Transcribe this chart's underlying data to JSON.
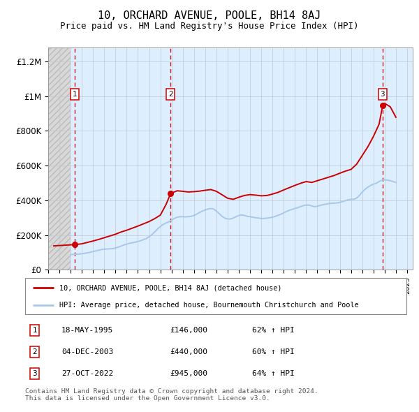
{
  "title": "10, ORCHARD AVENUE, POOLE, BH14 8AJ",
  "subtitle": "Price paid vs. HM Land Registry's House Price Index (HPI)",
  "title_fontsize": 11,
  "subtitle_fontsize": 9,
  "ylabel_ticks": [
    "£0",
    "£200K",
    "£400K",
    "£600K",
    "£800K",
    "£1M",
    "£1.2M"
  ],
  "ytick_values": [
    0,
    200000,
    400000,
    600000,
    800000,
    1000000,
    1200000
  ],
  "ylim": [
    0,
    1280000
  ],
  "xlim_start": 1993.0,
  "xlim_end": 2025.5,
  "hatch_end": 1995.0,
  "transactions": [
    {
      "label": "1",
      "date": "18-MAY-1995",
      "price": 146000,
      "year": 1995.38,
      "hpi_pct": "62% ↑ HPI"
    },
    {
      "label": "2",
      "date": "04-DEC-2003",
      "price": 440000,
      "year": 2003.92,
      "hpi_pct": "60% ↑ HPI"
    },
    {
      "label": "3",
      "date": "27-OCT-2022",
      "price": 945000,
      "year": 2022.82,
      "hpi_pct": "64% ↑ HPI"
    }
  ],
  "hpi_line_color": "#a8c8e8",
  "price_line_color": "#cc0000",
  "dashed_line_color": "#cc0000",
  "bg_hatch_color": "#d0d0d0",
  "bg_blue_color": "#ddeeff",
  "legend_label_price": "10, ORCHARD AVENUE, POOLE, BH14 8AJ (detached house)",
  "legend_label_hpi": "HPI: Average price, detached house, Bournemouth Christchurch and Poole",
  "footer_text": "Contains HM Land Registry data © Crown copyright and database right 2024.\nThis data is licensed under the Open Government Licence v3.0.",
  "hpi_data_x": [
    1995.0,
    1995.25,
    1995.5,
    1995.75,
    1996.0,
    1996.25,
    1996.5,
    1996.75,
    1997.0,
    1997.25,
    1997.5,
    1997.75,
    1998.0,
    1998.25,
    1998.5,
    1998.75,
    1999.0,
    1999.25,
    1999.5,
    1999.75,
    2000.0,
    2000.25,
    2000.5,
    2000.75,
    2001.0,
    2001.25,
    2001.5,
    2001.75,
    2002.0,
    2002.25,
    2002.5,
    2002.75,
    2003.0,
    2003.25,
    2003.5,
    2003.75,
    2004.0,
    2004.25,
    2004.5,
    2004.75,
    2005.0,
    2005.25,
    2005.5,
    2005.75,
    2006.0,
    2006.25,
    2006.5,
    2006.75,
    2007.0,
    2007.25,
    2007.5,
    2007.75,
    2008.0,
    2008.25,
    2008.5,
    2008.75,
    2009.0,
    2009.25,
    2009.5,
    2009.75,
    2010.0,
    2010.25,
    2010.5,
    2010.75,
    2011.0,
    2011.25,
    2011.5,
    2011.75,
    2012.0,
    2012.25,
    2012.5,
    2012.75,
    2013.0,
    2013.25,
    2013.5,
    2013.75,
    2014.0,
    2014.25,
    2014.5,
    2014.75,
    2015.0,
    2015.25,
    2015.5,
    2015.75,
    2016.0,
    2016.25,
    2016.5,
    2016.75,
    2017.0,
    2017.25,
    2017.5,
    2017.75,
    2018.0,
    2018.25,
    2018.5,
    2018.75,
    2019.0,
    2019.25,
    2019.5,
    2019.75,
    2020.0,
    2020.25,
    2020.5,
    2020.75,
    2021.0,
    2021.25,
    2021.5,
    2021.75,
    2022.0,
    2022.25,
    2022.5,
    2022.75,
    2023.0,
    2023.25,
    2023.5,
    2023.75,
    2024.0
  ],
  "hpi_data_y": [
    88000,
    89000,
    90000,
    91000,
    93000,
    95000,
    98000,
    101000,
    105000,
    109000,
    113000,
    117000,
    119000,
    120000,
    121000,
    122000,
    126000,
    131000,
    137000,
    143000,
    148000,
    153000,
    156000,
    159000,
    163000,
    168000,
    174000,
    180000,
    190000,
    203000,
    218000,
    235000,
    250000,
    261000,
    270000,
    276000,
    286000,
    296000,
    303000,
    306000,
    306000,
    305000,
    306000,
    308000,
    313000,
    321000,
    330000,
    338000,
    345000,
    350000,
    353000,
    350000,
    338000,
    323000,
    308000,
    298000,
    293000,
    293000,
    298000,
    306000,
    313000,
    316000,
    313000,
    308000,
    306000,
    303000,
    300000,
    298000,
    296000,
    296000,
    298000,
    300000,
    303000,
    308000,
    314000,
    320000,
    328000,
    336000,
    343000,
    348000,
    353000,
    358000,
    364000,
    370000,
    373000,
    373000,
    368000,
    363000,
    366000,
    371000,
    375000,
    378000,
    381000,
    383000,
    384000,
    385000,
    388000,
    393000,
    398000,
    403000,
    406000,
    406000,
    413000,
    428000,
    448000,
    463000,
    476000,
    486000,
    493000,
    498000,
    508000,
    516000,
    518000,
    516000,
    513000,
    508000,
    503000
  ],
  "price_data_x": [
    1993.5,
    1994.0,
    1994.5,
    1995.0,
    1995.38,
    1995.75,
    1996.0,
    1996.5,
    1997.0,
    1997.5,
    1998.0,
    1998.5,
    1999.0,
    1999.5,
    2000.0,
    2000.5,
    2001.0,
    2001.5,
    2002.0,
    2002.5,
    2003.0,
    2003.5,
    2003.92,
    2004.5,
    2005.0,
    2005.5,
    2006.0,
    2006.5,
    2007.0,
    2007.5,
    2008.0,
    2008.5,
    2009.0,
    2009.5,
    2010.0,
    2010.5,
    2011.0,
    2011.5,
    2012.0,
    2012.5,
    2013.0,
    2013.5,
    2014.0,
    2014.5,
    2015.0,
    2015.5,
    2016.0,
    2016.5,
    2017.0,
    2017.5,
    2018.0,
    2018.5,
    2019.0,
    2019.5,
    2020.0,
    2020.5,
    2021.0,
    2021.5,
    2022.0,
    2022.5,
    2022.82,
    2023.0,
    2023.5,
    2024.0
  ],
  "price_data_y": [
    138000,
    140000,
    142000,
    144000,
    146000,
    148000,
    150000,
    158000,
    166000,
    175000,
    185000,
    195000,
    205000,
    218000,
    228000,
    240000,
    252000,
    265000,
    278000,
    295000,
    315000,
    375000,
    440000,
    455000,
    452000,
    448000,
    450000,
    453000,
    458000,
    462000,
    452000,
    432000,
    412000,
    406000,
    418000,
    428000,
    433000,
    430000,
    426000,
    428000,
    436000,
    446000,
    460000,
    473000,
    486000,
    498000,
    508000,
    503000,
    513000,
    523000,
    533000,
    543000,
    556000,
    568000,
    578000,
    608000,
    658000,
    708000,
    768000,
    838000,
    945000,
    958000,
    938000,
    878000
  ]
}
